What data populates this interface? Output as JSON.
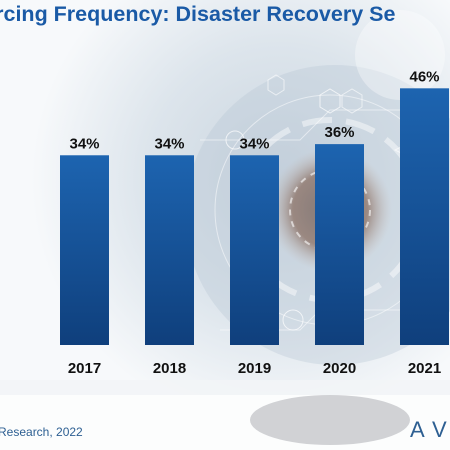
{
  "title": "urcing Frequency: Disaster Recovery Se",
  "source": "Research, 2022",
  "logo_text": "AV",
  "colors": {
    "bar": "#1b5fa8",
    "bar_dark": "#0f3f7c",
    "title": "#1a5aa6",
    "label": "#111111"
  },
  "chart_data": {
    "type": "bar",
    "categories": [
      "2017",
      "2018",
      "2019",
      "2020",
      "2021"
    ],
    "values": [
      34,
      34,
      34,
      36,
      46
    ],
    "value_labels": [
      "34%",
      "34%",
      "34%",
      "36%",
      "46%"
    ],
    "ylim": [
      0,
      60
    ],
    "grid": false,
    "legend": "none"
  }
}
